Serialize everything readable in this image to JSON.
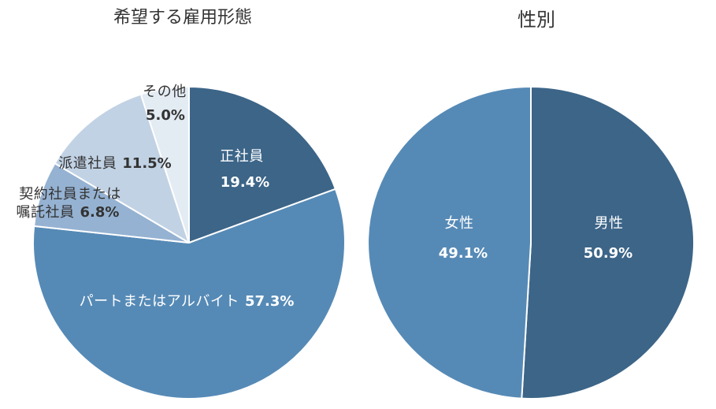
{
  "chart_data": [
    {
      "type": "pie",
      "title": "希望する雇用形態",
      "slices": [
        {
          "label_lines": [
            "正社員"
          ],
          "value": 19.4,
          "value_text": "19.4%",
          "color": "#3c6588",
          "text_color": "#ffffff"
        },
        {
          "label_lines": [
            "パートまたはアルバイト"
          ],
          "value": 57.3,
          "value_text": "57.3%",
          "color": "#568ab6",
          "text_color": "#ffffff"
        },
        {
          "label_lines": [
            "契約社員または",
            "嘱託社員"
          ],
          "value": 6.8,
          "value_text": "6.8%",
          "color": "#95b2d2",
          "text_color": "#333333"
        },
        {
          "label_lines": [
            "派遣社員"
          ],
          "value": 11.5,
          "value_text": "11.5%",
          "color": "#c1d2e4",
          "text_color": "#333333"
        },
        {
          "label_lines": [
            "その他"
          ],
          "value": 5.0,
          "value_text": "5.0%",
          "color": "#e3ebf3",
          "text_color": "#333333"
        }
      ]
    },
    {
      "type": "pie",
      "title": "性別",
      "slices": [
        {
          "label_lines": [
            "男性"
          ],
          "value": 50.9,
          "value_text": "50.9%",
          "color": "#3c6588",
          "text_color": "#ffffff"
        },
        {
          "label_lines": [
            "女性"
          ],
          "value": 49.1,
          "value_text": "49.1%",
          "color": "#568ab6",
          "text_color": "#ffffff"
        }
      ]
    }
  ]
}
